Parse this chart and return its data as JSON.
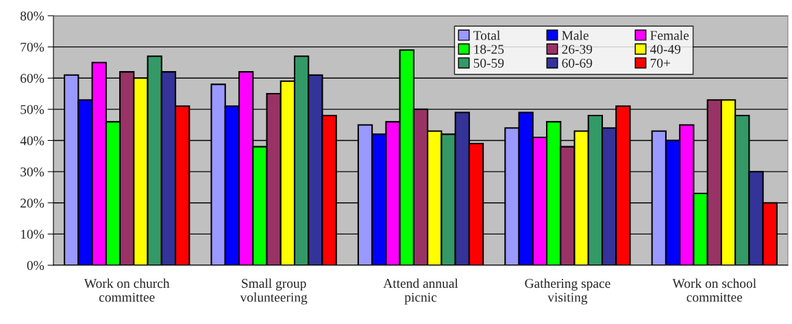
{
  "chart_data": {
    "type": "bar",
    "categories": [
      "Work on church\ncommittee",
      "Small group\nvolunteering",
      "Attend annual\npicnic",
      "Gathering space\nvisiting",
      "Work on school\ncommittee"
    ],
    "series": [
      {
        "name": "Total",
        "color": "#9999ff",
        "values": [
          61,
          58,
          45,
          44,
          43
        ]
      },
      {
        "name": "Male",
        "color": "#0000ff",
        "values": [
          53,
          51,
          42,
          49,
          40
        ]
      },
      {
        "name": "Female",
        "color": "#ff00ff",
        "values": [
          65,
          62,
          46,
          41,
          45
        ]
      },
      {
        "name": "18-25",
        "color": "#00ff00",
        "values": [
          46,
          38,
          69,
          46,
          23
        ]
      },
      {
        "name": "26-39",
        "color": "#993366",
        "values": [
          62,
          55,
          50,
          38,
          53
        ]
      },
      {
        "name": "40-49",
        "color": "#ffff00",
        "values": [
          60,
          59,
          43,
          43,
          53
        ]
      },
      {
        "name": "50-59",
        "color": "#339966",
        "values": [
          67,
          67,
          42,
          48,
          48
        ]
      },
      {
        "name": "60-69",
        "color": "#333399",
        "values": [
          62,
          61,
          49,
          44,
          30
        ]
      },
      {
        "name": "70+",
        "color": "#ff0000",
        "values": [
          51,
          48,
          39,
          51,
          20
        ]
      }
    ],
    "ylim": [
      0,
      80
    ],
    "yticks": [
      {
        "value": 0,
        "label": "0%"
      },
      {
        "value": 10,
        "label": "10%"
      },
      {
        "value": 20,
        "label": "20%"
      },
      {
        "value": 30,
        "label": "30%"
      },
      {
        "value": 40,
        "label": "40%"
      },
      {
        "value": 50,
        "label": "50%"
      },
      {
        "value": 60,
        "label": "60%"
      },
      {
        "value": 70,
        "label": "70%"
      },
      {
        "value": 80,
        "label": "80%"
      }
    ],
    "grid": "y",
    "legend": "top right"
  }
}
